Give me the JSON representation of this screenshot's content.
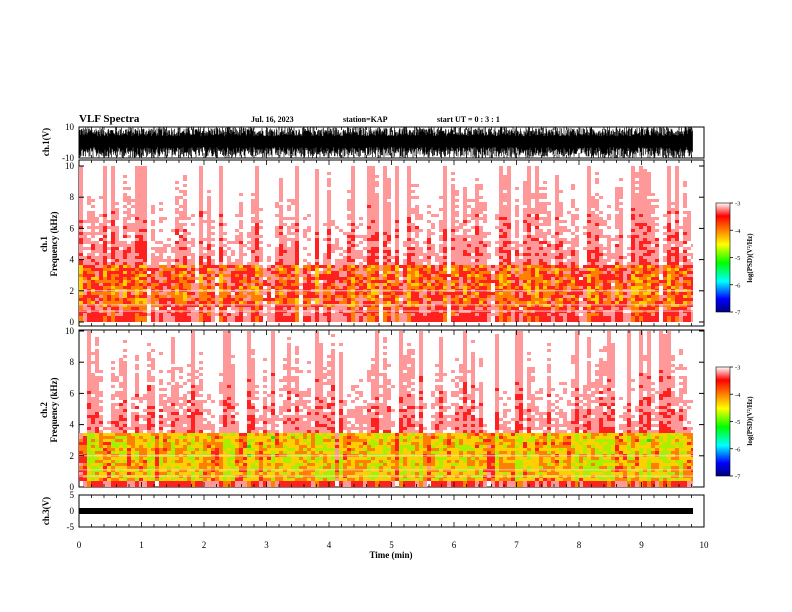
{
  "header": {
    "title": "VLF Spectra",
    "date": "Jul. 16, 2023",
    "station": "station=KAP",
    "start": "start UT = 0 : 3 : 1"
  },
  "chart_data": [
    {
      "type": "line",
      "panel": "waveform-top",
      "ylabel": "ch.1(V)",
      "ylim": [
        -10,
        10
      ],
      "yticks": [
        "10",
        "-10"
      ],
      "x_range_min": [
        0,
        10
      ],
      "data_extent_min": [
        0,
        9.8
      ],
      "description_of_signal": "dense noisy waveform spanning roughly -8 to +10 V"
    },
    {
      "type": "heatmap",
      "panel": "spectrogram-ch1",
      "ylabel": "ch.1\nFrequency (kHz)",
      "ylabel_lines": [
        "ch.1",
        "Frequency (kHz)"
      ],
      "ylim": [
        0,
        10
      ],
      "yticks": [
        "0",
        "2",
        "4",
        "6",
        "8",
        "10"
      ],
      "xlim": [
        0,
        10
      ],
      "colorbar": {
        "label": "log(PSD)(V²/Hz)",
        "range": [
          -7,
          -3
        ],
        "ticks": [
          "-3",
          "-4",
          "-5",
          "-6",
          "-7"
        ]
      },
      "dominant_band_khz": [
        1,
        3.8
      ],
      "band_level_log_psd": -4.2
    },
    {
      "type": "heatmap",
      "panel": "spectrogram-ch2",
      "ylabel": "ch.2\nFrequency (kHz)",
      "ylabel_lines": [
        "ch.2",
        "Frequency (kHz)"
      ],
      "ylim": [
        0,
        10
      ],
      "yticks": [
        "0",
        "2",
        "4",
        "6",
        "8",
        "10"
      ],
      "xlim": [
        0,
        10
      ],
      "colorbar": {
        "label": "log(PSD)(V²/Hz)",
        "range": [
          -7,
          -3
        ],
        "ticks": [
          "-3",
          "-4",
          "-5",
          "-6",
          "-7"
        ]
      },
      "dominant_band_khz": [
        0.5,
        3.5
      ],
      "band_level_log_psd": -4.8
    },
    {
      "type": "line",
      "panel": "waveform-bottom",
      "ylabel": "ch.3(V)",
      "ylim": [
        -5,
        5
      ],
      "yticks": [
        "5",
        "0",
        "-5"
      ],
      "xlabel": "Time (min)",
      "xlim": [
        0,
        10
      ],
      "xticks": [
        "0",
        "1",
        "2",
        "3",
        "4",
        "5",
        "6",
        "7",
        "8",
        "9",
        "10"
      ],
      "level_v": -0.8
    }
  ]
}
